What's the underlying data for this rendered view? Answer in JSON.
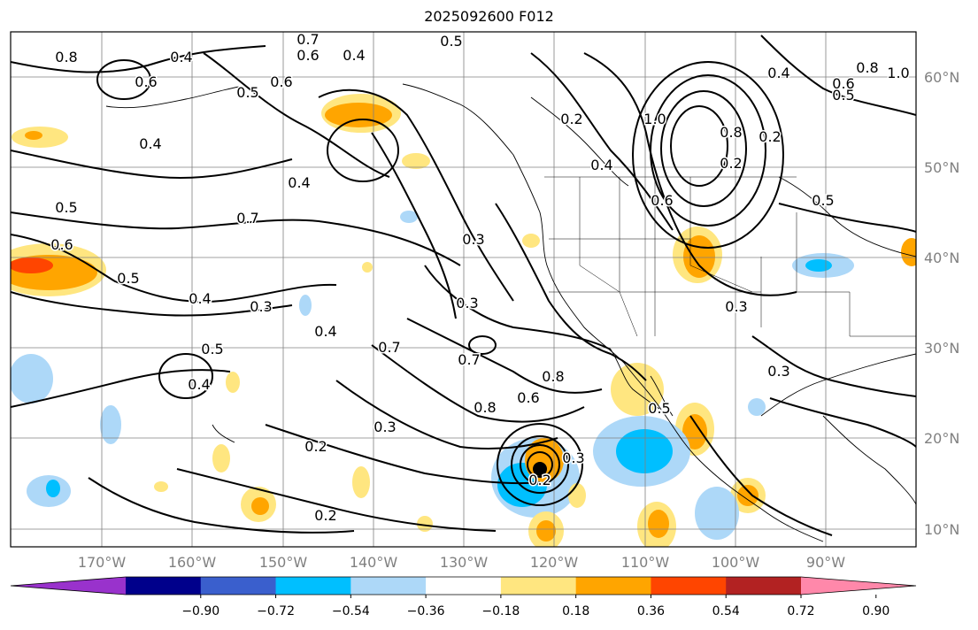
{
  "title": "2025092600 F012",
  "map": {
    "lat_labels": [
      "60°N",
      "50°N",
      "40°N",
      "30°N",
      "20°N",
      "10°N"
    ],
    "lon_labels": [
      "170°W",
      "160°W",
      "150°W",
      "140°W",
      "130°W",
      "120°W",
      "110°W",
      "100°W",
      "90°W"
    ],
    "contour_labels": [
      "0.7",
      "0.6",
      "0.5",
      "0.4",
      "0.6",
      "0.4",
      "0.6",
      "0.8",
      "0.5",
      "0.4",
      "0.4",
      "0.5",
      "0.7",
      "0.6",
      "0.5",
      "0.4",
      "0.3",
      "0.4",
      "0.5",
      "0.4",
      "0.3",
      "0.7",
      "0.7",
      "0.8",
      "0.6",
      "0.8",
      "0.3",
      "0.2",
      "0.2",
      "0.3",
      "0.2",
      "1.0",
      "0.8",
      "0.6",
      "0.4",
      "0.2",
      "0.3",
      "0.5",
      "0.4",
      "0.6",
      "0.5",
      "0.8",
      "1.0",
      "0.5",
      "0.2",
      "0.3",
      "0.2",
      "0.3"
    ],
    "colors": {
      "positive_light": "#ffe680",
      "positive_mid": "#ffa500",
      "positive_strong": "#ff4500",
      "negative_light": "#add8f8",
      "negative_mid": "#00bfff",
      "contour": "#000000",
      "grid": "#808080"
    }
  },
  "colorbar": {
    "tick_labels": [
      "−0.90",
      "−0.72",
      "−0.54",
      "−0.36",
      "−0.18",
      "0.18",
      "0.36",
      "0.54",
      "0.72",
      "0.90"
    ],
    "colors": [
      "#9932cc",
      "#00008b",
      "#3a5fcd",
      "#00bfff",
      "#add8f8",
      "#ffffff",
      "#ffe680",
      "#ffa500",
      "#ff4500",
      "#b22222",
      "#ff88aa"
    ]
  }
}
